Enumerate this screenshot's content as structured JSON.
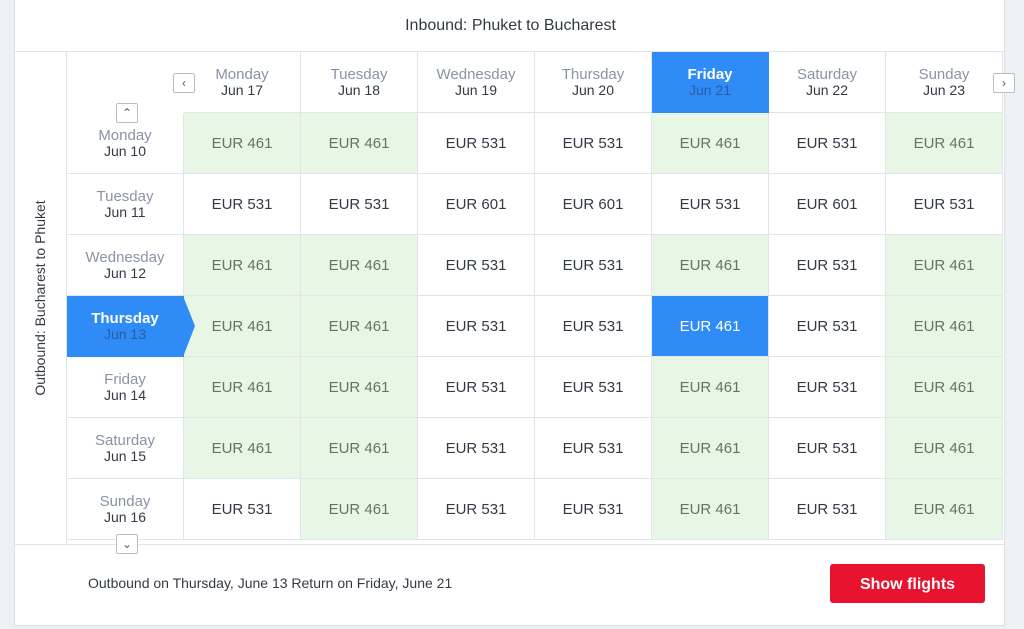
{
  "inbound_title": "Inbound: Phuket to Bucharest",
  "outbound_title": "Outbound: Bucharest to Phuket",
  "nav": {
    "prev_icon": "‹",
    "next_icon": "›",
    "up_icon": "⌃",
    "down_icon": "⌄"
  },
  "inbound_days": [
    {
      "day": "Monday",
      "date": "Jun 17"
    },
    {
      "day": "Tuesday",
      "date": "Jun 18"
    },
    {
      "day": "Wednesday",
      "date": "Jun 19"
    },
    {
      "day": "Thursday",
      "date": "Jun 20"
    },
    {
      "day": "Friday",
      "date": "Jun 21"
    },
    {
      "day": "Saturday",
      "date": "Jun 22"
    },
    {
      "day": "Sunday",
      "date": "Jun 23"
    }
  ],
  "outbound_days": [
    {
      "day": "Monday",
      "date": "Jun 10"
    },
    {
      "day": "Tuesday",
      "date": "Jun 11"
    },
    {
      "day": "Wednesday",
      "date": "Jun 12"
    },
    {
      "day": "Thursday",
      "date": "Jun 13"
    },
    {
      "day": "Friday",
      "date": "Jun 14"
    },
    {
      "day": "Saturday",
      "date": "Jun 15"
    },
    {
      "day": "Sunday",
      "date": "Jun 16"
    }
  ],
  "selected_inbound_index": 4,
  "selected_outbound_index": 3,
  "prices": [
    [
      "EUR 461",
      "EUR 461",
      "EUR 531",
      "EUR 531",
      "EUR 461",
      "EUR 531",
      "EUR 461"
    ],
    [
      "EUR 531",
      "EUR 531",
      "EUR 601",
      "EUR 601",
      "EUR 531",
      "EUR 601",
      "EUR 531"
    ],
    [
      "EUR 461",
      "EUR 461",
      "EUR 531",
      "EUR 531",
      "EUR 461",
      "EUR 531",
      "EUR 461"
    ],
    [
      "EUR 461",
      "EUR 461",
      "EUR 531",
      "EUR 531",
      "EUR 461",
      "EUR 531",
      "EUR 461"
    ],
    [
      "EUR 461",
      "EUR 461",
      "EUR 531",
      "EUR 531",
      "EUR 461",
      "EUR 531",
      "EUR 461"
    ],
    [
      "EUR 461",
      "EUR 461",
      "EUR 531",
      "EUR 531",
      "EUR 461",
      "EUR 531",
      "EUR 461"
    ],
    [
      "EUR 531",
      "EUR 461",
      "EUR 531",
      "EUR 531",
      "EUR 461",
      "EUR 531",
      "EUR 461"
    ]
  ],
  "cheap": [
    [
      true,
      true,
      false,
      false,
      true,
      false,
      true
    ],
    [
      false,
      false,
      false,
      false,
      false,
      false,
      false
    ],
    [
      true,
      true,
      false,
      false,
      true,
      false,
      true
    ],
    [
      true,
      true,
      false,
      false,
      true,
      false,
      true
    ],
    [
      true,
      true,
      false,
      false,
      true,
      false,
      true
    ],
    [
      true,
      true,
      false,
      false,
      true,
      false,
      true
    ],
    [
      false,
      true,
      false,
      false,
      true,
      false,
      true
    ]
  ],
  "footer_summary": "Outbound on Thursday, June 13 Return on Friday, June 21",
  "show_flights_label": "Show flights",
  "colors": {
    "selected": "#2f8cf7",
    "cheap_bg": "#e8f6e6",
    "cta": "#e8132e"
  }
}
